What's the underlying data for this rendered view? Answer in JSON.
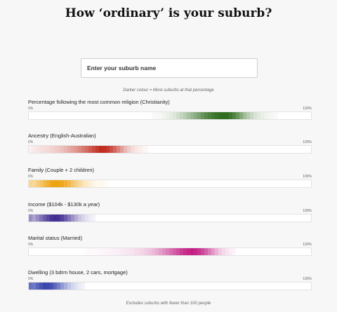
{
  "header": {
    "title": "How ‘ordinary’ is your suburb?"
  },
  "search": {
    "placeholder": "Enter your suburb name"
  },
  "legend_note": "Darker colour = More suburbs at that percentage",
  "footnote": "Excludes suburbs with fewer than 100 people",
  "scale": {
    "min_label": "0%",
    "max_label": "100%"
  },
  "metrics": [
    {
      "label": "Percentage following the most common religion (Christianity)",
      "color": "#2e6b1d",
      "distribution": [
        [
          44,
          0.03
        ],
        [
          46,
          0.05
        ],
        [
          48,
          0.07
        ],
        [
          50,
          0.12
        ],
        [
          52,
          0.18
        ],
        [
          54,
          0.28
        ],
        [
          56,
          0.38
        ],
        [
          58,
          0.5
        ],
        [
          60,
          0.62
        ],
        [
          62,
          0.75
        ],
        [
          64,
          0.85
        ],
        [
          66,
          0.93
        ],
        [
          68,
          0.98
        ],
        [
          70,
          1.0
        ],
        [
          72,
          0.9
        ],
        [
          74,
          0.72
        ],
        [
          76,
          0.5
        ],
        [
          78,
          0.32
        ],
        [
          80,
          0.2
        ],
        [
          82,
          0.12
        ],
        [
          84,
          0.08
        ],
        [
          86,
          0.05
        ],
        [
          88,
          0.03
        ]
      ]
    },
    {
      "label": "Ancestry (English-Australian)",
      "color": "#c0281c",
      "distribution": [
        [
          0,
          0.06
        ],
        [
          2,
          0.1
        ],
        [
          4,
          0.14
        ],
        [
          6,
          0.16
        ],
        [
          8,
          0.2
        ],
        [
          10,
          0.24
        ],
        [
          12,
          0.3
        ],
        [
          14,
          0.38
        ],
        [
          16,
          0.46
        ],
        [
          18,
          0.55
        ],
        [
          20,
          0.66
        ],
        [
          22,
          0.78
        ],
        [
          24,
          0.9
        ],
        [
          26,
          1.0
        ],
        [
          28,
          0.92
        ],
        [
          30,
          0.75
        ],
        [
          32,
          0.55
        ],
        [
          34,
          0.35
        ],
        [
          36,
          0.2
        ],
        [
          38,
          0.12
        ],
        [
          40,
          0.07
        ],
        [
          42,
          0.04
        ]
      ]
    },
    {
      "label": "Family (Couple + 2 children)",
      "color": "#eea20f",
      "distribution": [
        [
          0,
          0.6
        ],
        [
          1,
          0.35
        ],
        [
          2,
          0.45
        ],
        [
          4,
          0.6
        ],
        [
          6,
          0.8
        ],
        [
          8,
          0.95
        ],
        [
          10,
          1.0
        ],
        [
          12,
          0.92
        ],
        [
          14,
          0.78
        ],
        [
          16,
          0.58
        ],
        [
          18,
          0.4
        ],
        [
          20,
          0.25
        ],
        [
          22,
          0.15
        ],
        [
          24,
          0.08
        ],
        [
          26,
          0.05
        ],
        [
          28,
          0.03
        ]
      ]
    },
    {
      "label": "Income ($104k - $130k a year)",
      "color": "#3f2a91",
      "distribution": [
        [
          0,
          0.9
        ],
        [
          1,
          0.3
        ],
        [
          2,
          0.45
        ],
        [
          4,
          0.62
        ],
        [
          6,
          0.8
        ],
        [
          8,
          0.95
        ],
        [
          10,
          1.0
        ],
        [
          12,
          0.88
        ],
        [
          14,
          0.68
        ],
        [
          16,
          0.46
        ],
        [
          18,
          0.28
        ],
        [
          20,
          0.15
        ],
        [
          22,
          0.08
        ],
        [
          24,
          0.04
        ]
      ]
    },
    {
      "label": "Marital status (Married)",
      "color": "#c21d84",
      "distribution": [
        [
          20,
          0.02
        ],
        [
          24,
          0.03
        ],
        [
          28,
          0.05
        ],
        [
          32,
          0.08
        ],
        [
          36,
          0.12
        ],
        [
          40,
          0.18
        ],
        [
          42,
          0.24
        ],
        [
          44,
          0.3
        ],
        [
          46,
          0.4
        ],
        [
          48,
          0.5
        ],
        [
          50,
          0.62
        ],
        [
          52,
          0.74
        ],
        [
          54,
          0.86
        ],
        [
          56,
          0.95
        ],
        [
          58,
          1.0
        ],
        [
          60,
          0.92
        ],
        [
          62,
          0.78
        ],
        [
          64,
          0.58
        ],
        [
          66,
          0.38
        ],
        [
          68,
          0.22
        ],
        [
          70,
          0.12
        ],
        [
          72,
          0.06
        ],
        [
          74,
          0.03
        ]
      ]
    },
    {
      "label": "Dwelling (3 bdrm house, 2 cars, mortgage)",
      "color": "#2b3aa8",
      "distribution": [
        [
          0,
          1.0
        ],
        [
          1,
          0.55
        ],
        [
          2,
          0.7
        ],
        [
          4,
          0.85
        ],
        [
          6,
          0.95
        ],
        [
          8,
          0.88
        ],
        [
          10,
          0.7
        ],
        [
          12,
          0.5
        ],
        [
          14,
          0.32
        ],
        [
          16,
          0.18
        ],
        [
          18,
          0.1
        ],
        [
          20,
          0.05
        ]
      ]
    }
  ]
}
